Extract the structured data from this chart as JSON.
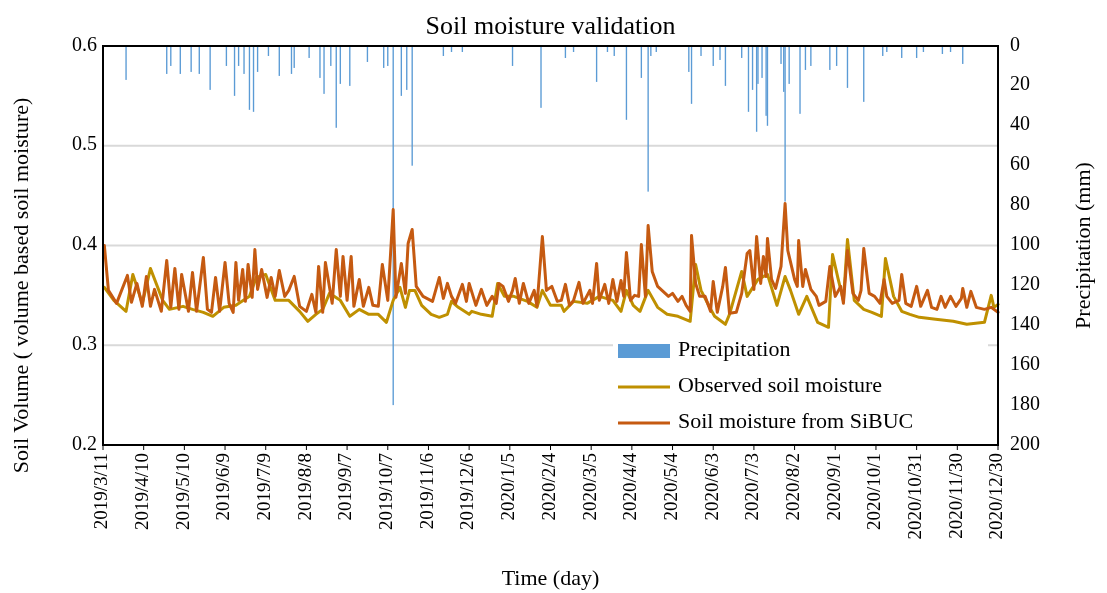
{
  "chart_data": {
    "type": "line",
    "title": "Soil moisture validation",
    "xlabel": "Time (day)",
    "ylabel": "Soil Volume ( volume based soil moisture)",
    "y2label": "Precipitation (mm)",
    "xlim": [
      "2019-03-11",
      "2020-12-30"
    ],
    "xticks": [
      {
        "value": "2019-03-11",
        "label": "2019/3/11"
      },
      {
        "value": "2019-04-10",
        "label": "2019/4/10"
      },
      {
        "value": "2019-05-10",
        "label": "2019/5/10"
      },
      {
        "value": "2019-06-09",
        "label": "2019/6/9"
      },
      {
        "value": "2019-07-09",
        "label": "2019/7/9"
      },
      {
        "value": "2019-08-08",
        "label": "2019/8/8"
      },
      {
        "value": "2019-09-07",
        "label": "2019/9/7"
      },
      {
        "value": "2019-10-07",
        "label": "2019/10/7"
      },
      {
        "value": "2019-11-06",
        "label": "2019/11/6"
      },
      {
        "value": "2019-12-06",
        "label": "2019/12/6"
      },
      {
        "value": "2020-01-05",
        "label": "2020/1/5"
      },
      {
        "value": "2020-02-04",
        "label": "2020/2/4"
      },
      {
        "value": "2020-03-05",
        "label": "2020/3/5"
      },
      {
        "value": "2020-04-04",
        "label": "2020/4/4"
      },
      {
        "value": "2020-05-04",
        "label": "2020/5/4"
      },
      {
        "value": "2020-06-03",
        "label": "2020/6/3"
      },
      {
        "value": "2020-07-03",
        "label": "2020/7/3"
      },
      {
        "value": "2020-08-02",
        "label": "2020/8/2"
      },
      {
        "value": "2020-09-01",
        "label": "2020/9/1"
      },
      {
        "value": "2020-10-01",
        "label": "2020/10/1"
      },
      {
        "value": "2020-10-31",
        "label": "2020/10/31"
      },
      {
        "value": "2020-11-30",
        "label": "2020/11/30"
      },
      {
        "value": "2020-12-30",
        "label": "2020/12/30"
      }
    ],
    "ylim": [
      0.2,
      0.6
    ],
    "yticks": [
      0.2,
      0.3,
      0.4,
      0.5,
      0.6
    ],
    "y2lim": [
      200,
      0
    ],
    "y2ticks": [
      0,
      20,
      40,
      60,
      80,
      100,
      120,
      140,
      160,
      180,
      200
    ],
    "grid": "y",
    "legend": "bottom right",
    "series": [
      {
        "name": "Precipitation",
        "type": "bar",
        "axis": "y2",
        "color": "#5b9bd5",
        "x": [
          "2019-03-28",
          "2019-04-27",
          "2019-04-30",
          "2019-05-07",
          "2019-05-15",
          "2019-05-21",
          "2019-05-29",
          "2019-06-10",
          "2019-06-16",
          "2019-06-19",
          "2019-06-23",
          "2019-06-27",
          "2019-06-30",
          "2019-07-03",
          "2019-07-11",
          "2019-07-19",
          "2019-07-28",
          "2019-07-30",
          "2019-08-10",
          "2019-08-18",
          "2019-08-21",
          "2019-08-26",
          "2019-08-30",
          "2019-09-02",
          "2019-09-09",
          "2019-09-22",
          "2019-10-04",
          "2019-10-07",
          "2019-10-11",
          "2019-10-17",
          "2019-10-21",
          "2019-10-25",
          "2019-11-17",
          "2019-11-23",
          "2019-12-01",
          "2020-01-07",
          "2020-01-28",
          "2020-02-15",
          "2020-02-21",
          "2020-03-09",
          "2020-03-17",
          "2020-03-22",
          "2020-03-31",
          "2020-04-11",
          "2020-04-16",
          "2020-04-18",
          "2020-04-22",
          "2020-05-16",
          "2020-05-18",
          "2020-05-25",
          "2020-06-03",
          "2020-06-08",
          "2020-06-12",
          "2020-06-24",
          "2020-06-29",
          "2020-07-02",
          "2020-07-05",
          "2020-07-06",
          "2020-07-09",
          "2020-07-12",
          "2020-07-13",
          "2020-07-23",
          "2020-07-25",
          "2020-07-26",
          "2020-07-29",
          "2020-08-06",
          "2020-08-10",
          "2020-08-14",
          "2020-08-28",
          "2020-09-02",
          "2020-09-10",
          "2020-09-22",
          "2020-10-06",
          "2020-10-09",
          "2020-10-20",
          "2020-10-31",
          "2020-11-05",
          "2020-11-19",
          "2020-11-25",
          "2020-12-04"
        ],
        "values": [
          17,
          14,
          10,
          14,
          13,
          14,
          22,
          10,
          25,
          10,
          14,
          32,
          33,
          13,
          5,
          15,
          14,
          11,
          6,
          16,
          24,
          10,
          41,
          19,
          20,
          8,
          11,
          10,
          180,
          25,
          22,
          60,
          5,
          3,
          3,
          10,
          31,
          6,
          3,
          18,
          3,
          5,
          37,
          16,
          73,
          5,
          3,
          13,
          29,
          5,
          10,
          7,
          20,
          6,
          33,
          22,
          43,
          19,
          16,
          35,
          40,
          9,
          23,
          78,
          19,
          34,
          12,
          10,
          12,
          10,
          21,
          28,
          5,
          3,
          6,
          6,
          3,
          4,
          3,
          9
        ]
      },
      {
        "name": "Observed soil moisture",
        "color": "#bf9000",
        "x": [
          "2019-03-12",
          "2019-03-19",
          "2019-03-28",
          "2019-04-02",
          "2019-04-09",
          "2019-04-15",
          "2019-04-24",
          "2019-04-29",
          "2019-05-09",
          "2019-05-16",
          "2019-05-24",
          "2019-05-31",
          "2019-06-08",
          "2019-06-17",
          "2019-06-27",
          "2019-07-02",
          "2019-07-09",
          "2019-07-16",
          "2019-07-26",
          "2019-08-03",
          "2019-08-09",
          "2019-08-15",
          "2019-08-20",
          "2019-08-25",
          "2019-09-02",
          "2019-09-09",
          "2019-09-16",
          "2019-09-23",
          "2019-09-30",
          "2019-10-06",
          "2019-10-11",
          "2019-10-16",
          "2019-10-20",
          "2019-10-23",
          "2019-10-27",
          "2019-11-01",
          "2019-11-08",
          "2019-11-14",
          "2019-11-20",
          "2019-11-23",
          "2019-11-28",
          "2019-12-06",
          "2019-12-08",
          "2019-12-15",
          "2019-12-23",
          "2019-12-27",
          "2020-01-01",
          "2020-01-08",
          "2020-01-18",
          "2020-01-25",
          "2020-01-29",
          "2020-02-04",
          "2020-02-12",
          "2020-02-14",
          "2020-02-21",
          "2020-03-02",
          "2020-03-11",
          "2020-03-21",
          "2020-03-27",
          "2020-03-31",
          "2020-04-05",
          "2020-04-10",
          "2020-04-16",
          "2020-04-23",
          "2020-04-30",
          "2020-05-08",
          "2020-05-17",
          "2020-05-21",
          "2020-05-25",
          "2020-05-31",
          "2020-06-04",
          "2020-06-12",
          "2020-06-15",
          "2020-06-24",
          "2020-06-28",
          "2020-07-06",
          "2020-07-13",
          "2020-07-20",
          "2020-07-26",
          "2020-07-30",
          "2020-08-05",
          "2020-08-11",
          "2020-08-19",
          "2020-08-27",
          "2020-08-30",
          "2020-09-03",
          "2020-09-07",
          "2020-09-10",
          "2020-09-15",
          "2020-09-22",
          "2020-09-28",
          "2020-10-05",
          "2020-10-08",
          "2020-10-14",
          "2020-10-20",
          "2020-10-26",
          "2020-11-02",
          "2020-11-14",
          "2020-11-27",
          "2020-12-07",
          "2020-12-20",
          "2020-12-25",
          "2020-12-27",
          "2020-12-30"
        ],
        "values": [
          0.358,
          0.345,
          0.334,
          0.371,
          0.342,
          0.377,
          0.345,
          0.336,
          0.339,
          0.336,
          0.333,
          0.329,
          0.338,
          0.34,
          0.349,
          0.368,
          0.371,
          0.345,
          0.345,
          0.334,
          0.324,
          0.331,
          0.336,
          0.352,
          0.345,
          0.329,
          0.336,
          0.331,
          0.331,
          0.323,
          0.345,
          0.358,
          0.338,
          0.355,
          0.355,
          0.34,
          0.331,
          0.328,
          0.331,
          0.344,
          0.338,
          0.331,
          0.334,
          0.331,
          0.329,
          0.362,
          0.349,
          0.349,
          0.344,
          0.338,
          0.355,
          0.34,
          0.34,
          0.334,
          0.344,
          0.342,
          0.349,
          0.345,
          0.334,
          0.355,
          0.34,
          0.334,
          0.355,
          0.338,
          0.331,
          0.329,
          0.324,
          0.381,
          0.355,
          0.339,
          0.329,
          0.321,
          0.331,
          0.374,
          0.349,
          0.366,
          0.371,
          0.34,
          0.369,
          0.355,
          0.331,
          0.349,
          0.323,
          0.318,
          0.391,
          0.367,
          0.345,
          0.406,
          0.345,
          0.336,
          0.333,
          0.329,
          0.387,
          0.349,
          0.334,
          0.331,
          0.328,
          0.326,
          0.324,
          0.321,
          0.323,
          0.35,
          0.338,
          0.341
        ]
      },
      {
        "name": "Soil moisture from SiBUC",
        "color": "#c55a11",
        "x": [
          "2019-03-12",
          "2019-03-15",
          "2019-03-21",
          "2019-03-29",
          "2019-04-01",
          "2019-04-05",
          "2019-04-09",
          "2019-04-12",
          "2019-04-15",
          "2019-04-18",
          "2019-04-23",
          "2019-04-27",
          "2019-04-30",
          "2019-05-03",
          "2019-05-06",
          "2019-05-08",
          "2019-05-13",
          "2019-05-16",
          "2019-05-19",
          "2019-05-24",
          "2019-05-27",
          "2019-05-30",
          "2019-06-02",
          "2019-06-05",
          "2019-06-09",
          "2019-06-12",
          "2019-06-15",
          "2019-06-17",
          "2019-06-19",
          "2019-06-22",
          "2019-06-24",
          "2019-06-26",
          "2019-06-29",
          "2019-07-01",
          "2019-07-03",
          "2019-07-06",
          "2019-07-10",
          "2019-07-13",
          "2019-07-16",
          "2019-07-19",
          "2019-07-23",
          "2019-07-26",
          "2019-07-30",
          "2019-08-03",
          "2019-08-08",
          "2019-08-12",
          "2019-08-15",
          "2019-08-17",
          "2019-08-20",
          "2019-08-22",
          "2019-08-27",
          "2019-08-30",
          "2019-09-02",
          "2019-09-04",
          "2019-09-07",
          "2019-09-10",
          "2019-09-12",
          "2019-09-16",
          "2019-09-19",
          "2019-09-23",
          "2019-09-26",
          "2019-09-30",
          "2019-10-03",
          "2019-10-07",
          "2019-10-11",
          "2019-10-13",
          "2019-10-17",
          "2019-10-20",
          "2019-10-22",
          "2019-10-25",
          "2019-10-28",
          "2019-11-02",
          "2019-11-09",
          "2019-11-14",
          "2019-11-17",
          "2019-11-20",
          "2019-11-23",
          "2019-11-26",
          "2019-12-01",
          "2019-12-04",
          "2019-12-06",
          "2019-12-11",
          "2019-12-15",
          "2019-12-19",
          "2019-12-23",
          "2019-12-26",
          "2019-12-28",
          "2019-12-31",
          "2020-01-04",
          "2020-01-07",
          "2020-01-09",
          "2020-01-12",
          "2020-01-15",
          "2020-01-19",
          "2020-01-23",
          "2020-01-25",
          "2020-01-29",
          "2020-02-01",
          "2020-02-05",
          "2020-02-09",
          "2020-02-12",
          "2020-02-15",
          "2020-02-18",
          "2020-02-21",
          "2020-02-25",
          "2020-02-28",
          "2020-03-04",
          "2020-03-06",
          "2020-03-09",
          "2020-03-11",
          "2020-03-15",
          "2020-03-18",
          "2020-03-21",
          "2020-03-24",
          "2020-03-27",
          "2020-03-29",
          "2020-03-31",
          "2020-04-03",
          "2020-04-06",
          "2020-04-09",
          "2020-04-11",
          "2020-04-14",
          "2020-04-16",
          "2020-04-19",
          "2020-04-23",
          "2020-04-27",
          "2020-05-01",
          "2020-05-04",
          "2020-05-08",
          "2020-05-11",
          "2020-05-14",
          "2020-05-17",
          "2020-05-18",
          "2020-05-21",
          "2020-05-24",
          "2020-05-28",
          "2020-06-01",
          "2020-06-03",
          "2020-06-06",
          "2020-06-10",
          "2020-06-12",
          "2020-06-15",
          "2020-06-20",
          "2020-06-24",
          "2020-06-28",
          "2020-06-30",
          "2020-07-03",
          "2020-07-05",
          "2020-07-08",
          "2020-07-10",
          "2020-07-12",
          "2020-07-13",
          "2020-07-16",
          "2020-07-19",
          "2020-07-23",
          "2020-07-26",
          "2020-07-28",
          "2020-08-02",
          "2020-08-04",
          "2020-08-05",
          "2020-08-08",
          "2020-08-10",
          "2020-08-14",
          "2020-08-18",
          "2020-08-20",
          "2020-08-25",
          "2020-08-28",
          "2020-09-01",
          "2020-09-05",
          "2020-09-07",
          "2020-09-10",
          "2020-09-14",
          "2020-09-18",
          "2020-09-20",
          "2020-09-22",
          "2020-09-26",
          "2020-09-30",
          "2020-10-04",
          "2020-10-07",
          "2020-10-09",
          "2020-10-13",
          "2020-10-18",
          "2020-10-20",
          "2020-10-23",
          "2020-10-27",
          "2020-10-31",
          "2020-11-03",
          "2020-11-08",
          "2020-11-11",
          "2020-11-15",
          "2020-11-18",
          "2020-11-21",
          "2020-11-25",
          "2020-11-29",
          "2020-12-03",
          "2020-12-04",
          "2020-12-07",
          "2020-12-10",
          "2020-12-14",
          "2020-12-20",
          "2020-12-25",
          "2020-12-30"
        ],
        "values": [
          0.4,
          0.355,
          0.342,
          0.37,
          0.343,
          0.362,
          0.339,
          0.369,
          0.339,
          0.356,
          0.334,
          0.385,
          0.338,
          0.377,
          0.336,
          0.371,
          0.334,
          0.373,
          0.334,
          0.388,
          0.336,
          0.333,
          0.368,
          0.334,
          0.383,
          0.342,
          0.333,
          0.383,
          0.345,
          0.376,
          0.344,
          0.381,
          0.348,
          0.396,
          0.356,
          0.376,
          0.348,
          0.368,
          0.349,
          0.375,
          0.349,
          0.355,
          0.369,
          0.339,
          0.334,
          0.351,
          0.333,
          0.379,
          0.333,
          0.383,
          0.342,
          0.396,
          0.349,
          0.389,
          0.345,
          0.389,
          0.339,
          0.366,
          0.339,
          0.358,
          0.34,
          0.339,
          0.381,
          0.345,
          0.436,
          0.348,
          0.382,
          0.352,
          0.402,
          0.416,
          0.359,
          0.349,
          0.344,
          0.368,
          0.347,
          0.362,
          0.349,
          0.342,
          0.361,
          0.344,
          0.362,
          0.34,
          0.356,
          0.34,
          0.349,
          0.342,
          0.362,
          0.359,
          0.344,
          0.355,
          0.367,
          0.342,
          0.362,
          0.342,
          0.355,
          0.339,
          0.409,
          0.355,
          0.359,
          0.344,
          0.345,
          0.361,
          0.34,
          0.345,
          0.363,
          0.342,
          0.355,
          0.342,
          0.382,
          0.345,
          0.361,
          0.342,
          0.366,
          0.344,
          0.365,
          0.349,
          0.393,
          0.345,
          0.35,
          0.349,
          0.401,
          0.349,
          0.42,
          0.374,
          0.359,
          0.354,
          0.349,
          0.352,
          0.344,
          0.349,
          0.34,
          0.334,
          0.41,
          0.362,
          0.349,
          0.349,
          0.334,
          0.364,
          0.333,
          0.359,
          0.378,
          0.332,
          0.333,
          0.352,
          0.392,
          0.395,
          0.356,
          0.409,
          0.362,
          0.389,
          0.369,
          0.407,
          0.366,
          0.357,
          0.379,
          0.442,
          0.395,
          0.366,
          0.359,
          0.405,
          0.359,
          0.376,
          0.356,
          0.349,
          0.34,
          0.344,
          0.379,
          0.349,
          0.359,
          0.342,
          0.395,
          0.352,
          0.345,
          0.355,
          0.397,
          0.352,
          0.349,
          0.342,
          0.366,
          0.349,
          0.342,
          0.345,
          0.371,
          0.342,
          0.339,
          0.359,
          0.339,
          0.355,
          0.338,
          0.336,
          0.349,
          0.338,
          0.349,
          0.339,
          0.347,
          0.357,
          0.338,
          0.354,
          0.338,
          0.336,
          0.338,
          0.333
        ]
      }
    ]
  }
}
